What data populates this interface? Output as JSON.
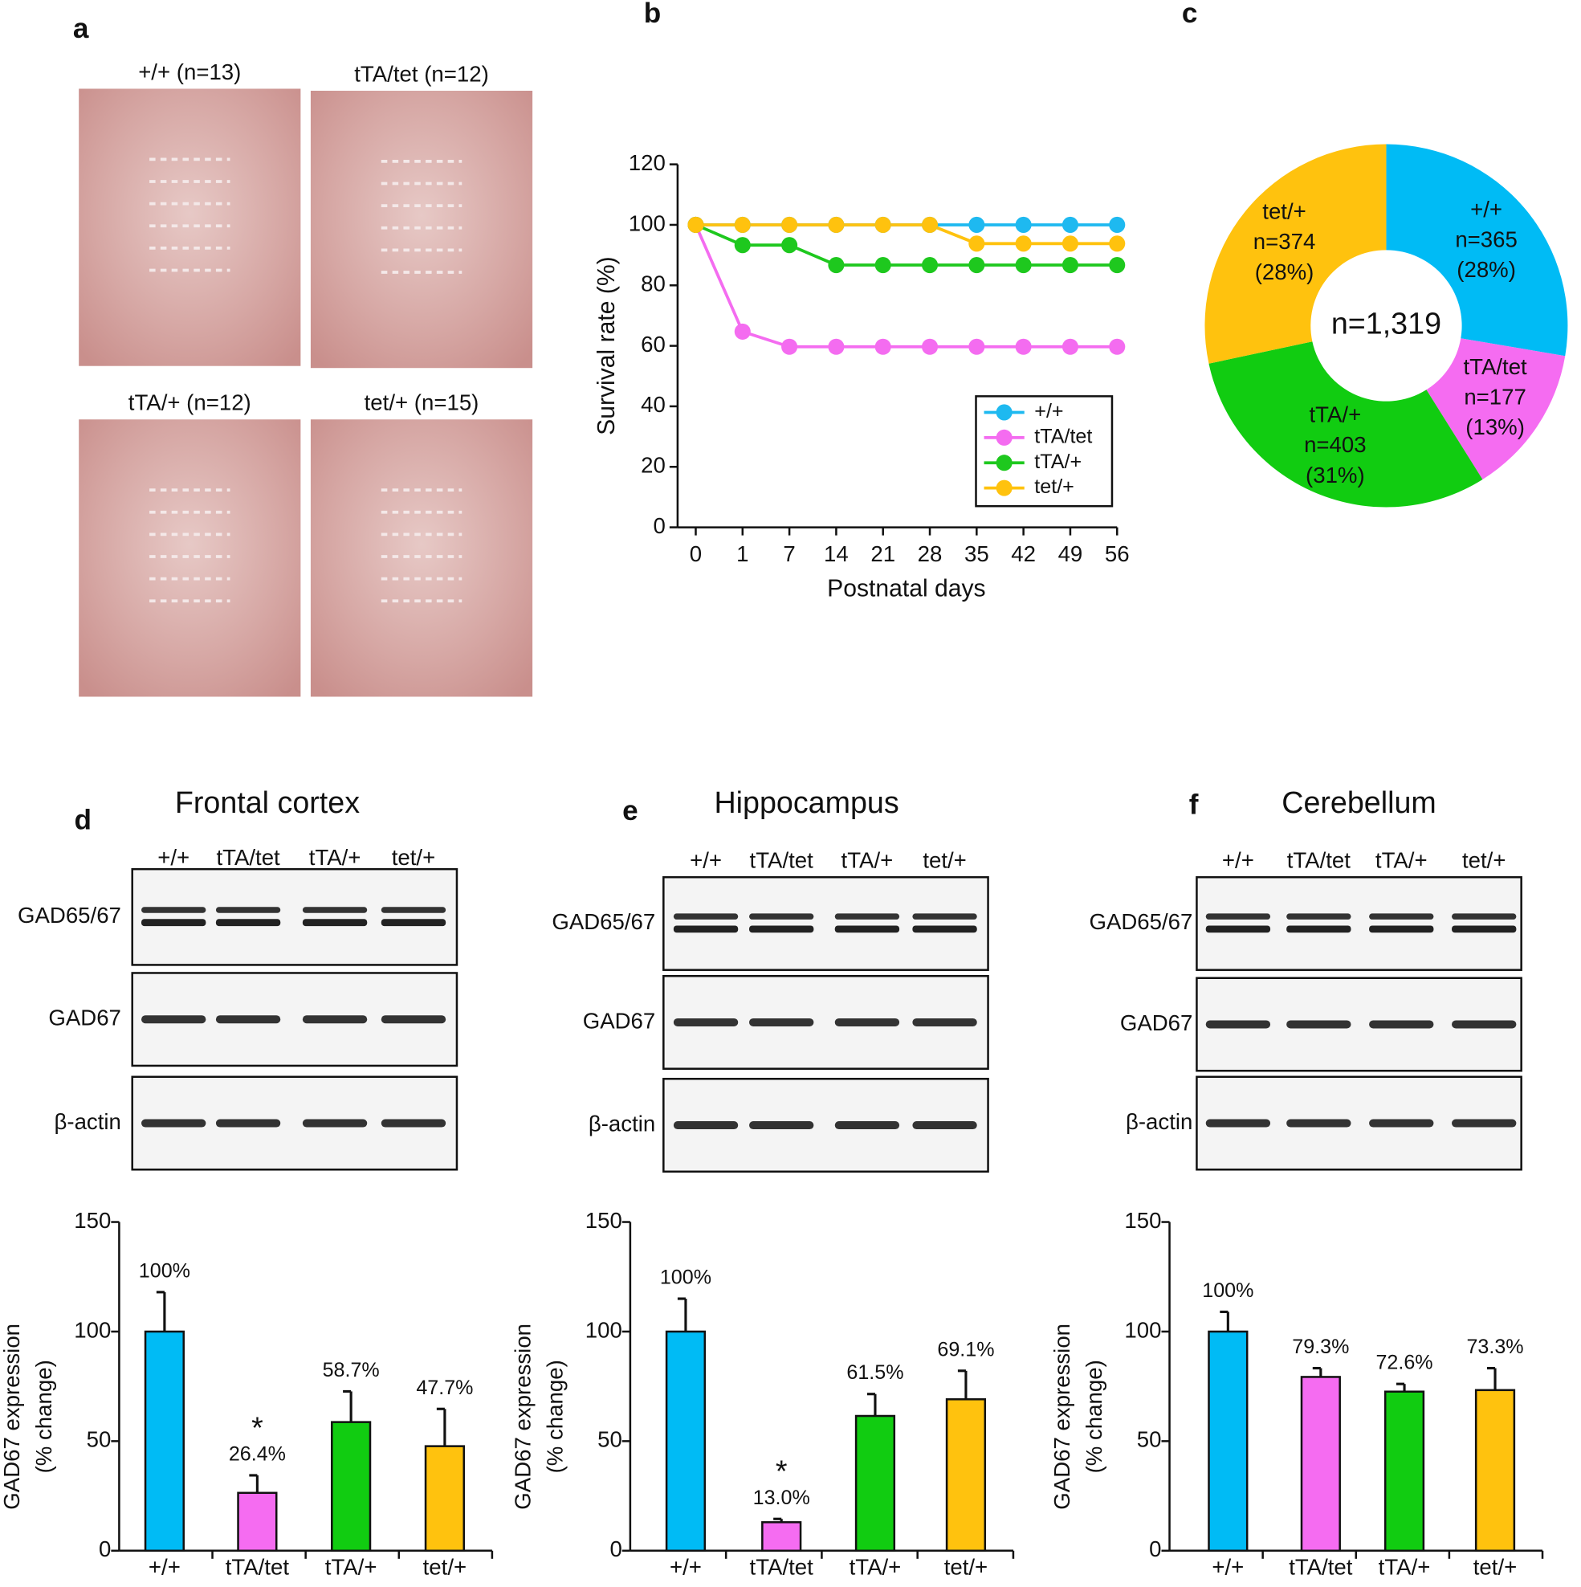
{
  "panel_labels": [
    "a",
    "b",
    "c",
    "d",
    "e",
    "f"
  ],
  "photos": {
    "labels": [
      "+/+ (n=13)",
      "tTA/tet (n=12)",
      "tTA/+ (n=12)",
      "tet/+ (n=15)"
    ]
  },
  "blots": [
    {
      "title": "Frontal cortex",
      "lanes": [
        "+/+",
        "tTA/tet",
        "tTA/+",
        "tet/+"
      ],
      "rows": [
        "GAD65/67",
        "GAD67",
        "β-actin"
      ]
    },
    {
      "title": "Hippocampus",
      "lanes": [
        "+/+",
        "tTA/tet",
        "tTA/+",
        "tet/+"
      ],
      "rows": [
        "GAD65/67",
        "GAD67",
        "β-actin"
      ]
    },
    {
      "title": "Cerebellum",
      "lanes": [
        "+/+",
        "tTA/tet",
        "tTA/+",
        "tet/+"
      ],
      "rows": [
        "GAD65/67",
        "GAD67",
        "β-actin"
      ]
    }
  ],
  "chart_data": [
    {
      "type": "line",
      "x_label": "Postnatal days",
      "y_label": "Survival rate (%)",
      "categories": [
        "0",
        "1",
        "7",
        "14",
        "21",
        "28",
        "35",
        "42",
        "49",
        "56"
      ],
      "ylim": [
        0,
        120
      ],
      "yticks": [
        0,
        20,
        40,
        60,
        80,
        100,
        120
      ],
      "legend": "lower-right",
      "series": [
        {
          "name": "+/+",
          "color": "#1eb9f0",
          "values": [
            100,
            100,
            100,
            100,
            100,
            100,
            100,
            100,
            100,
            100
          ]
        },
        {
          "name": "tTA/tet",
          "color": "#f46cf0",
          "values": [
            100,
            64.7,
            59.7,
            59.7,
            59.7,
            59.7,
            59.7,
            59.7,
            59.7,
            59.7
          ]
        },
        {
          "name": "tTA/+",
          "color": "#1ec81e",
          "values": [
            100,
            93.3,
            93.3,
            86.7,
            86.7,
            86.7,
            86.7,
            86.7,
            86.7,
            86.7
          ]
        },
        {
          "name": "tet/+",
          "color": "#ffc20e",
          "values": [
            100,
            100,
            100,
            100,
            100,
            100,
            93.8,
            93.8,
            93.8,
            93.8
          ]
        }
      ]
    },
    {
      "type": "pie",
      "center_label": "n=1,319",
      "categories": [
        "+/+",
        "tTA/tet",
        "tTA/+",
        "tet/+"
      ],
      "values": [
        365,
        177,
        403,
        374
      ],
      "value_labels": [
        "n=365",
        "n=177",
        "n=403",
        "n=374"
      ],
      "percent_labels": [
        "(28%)",
        "(13%)",
        "(31%)",
        "(28%)"
      ],
      "colors": [
        "#00bbf5",
        "#f56cf1",
        "#11cc11",
        "#ffc20e"
      ]
    },
    {
      "type": "bar",
      "y_label": [
        "GAD67 expression",
        "(% change)"
      ],
      "categories": [
        "+/+",
        "tTA/tet",
        "tTA/+",
        "tet/+"
      ],
      "values": [
        100,
        26.4,
        58.7,
        47.7
      ],
      "errors": [
        18,
        8,
        14,
        17
      ],
      "value_labels": [
        "100%",
        "26.4%",
        "58.7%",
        "47.7%"
      ],
      "significance": [
        {
          "category": "tTA/tet",
          "label": "*"
        }
      ],
      "colors": [
        "#00bbf5",
        "#f56cf1",
        "#11cc11",
        "#ffc20e"
      ],
      "ylim": [
        0,
        150
      ],
      "yticks": [
        0,
        50,
        100,
        150
      ]
    },
    {
      "type": "bar",
      "y_label": [
        "GAD67 expression",
        "(% change)"
      ],
      "categories": [
        "+/+",
        "tTA/tet",
        "tTA/+",
        "tet/+"
      ],
      "values": [
        100,
        13.0,
        61.5,
        69.1
      ],
      "errors": [
        15,
        1.5,
        10,
        13
      ],
      "value_labels": [
        "100%",
        "13.0%",
        "61.5%",
        "69.1%"
      ],
      "significance": [
        {
          "category": "tTA/tet",
          "label": "*"
        }
      ],
      "colors": [
        "#00bbf5",
        "#f56cf1",
        "#11cc11",
        "#ffc20e"
      ],
      "ylim": [
        0,
        150
      ],
      "yticks": [
        0,
        50,
        100,
        150
      ]
    },
    {
      "type": "bar",
      "y_label": [
        "GAD67 expression",
        "(% change)"
      ],
      "categories": [
        "+/+",
        "tTA/tet",
        "tTA/+",
        "tet/+"
      ],
      "values": [
        100,
        79.3,
        72.6,
        73.3
      ],
      "errors": [
        9,
        4,
        3.5,
        10
      ],
      "value_labels": [
        "100%",
        "79.3%",
        "72.6%",
        "73.3%"
      ],
      "colors": [
        "#00bbf5",
        "#f56cf1",
        "#11cc11",
        "#ffc20e"
      ],
      "ylim": [
        0,
        150
      ],
      "yticks": [
        0,
        50,
        100,
        150
      ]
    }
  ]
}
